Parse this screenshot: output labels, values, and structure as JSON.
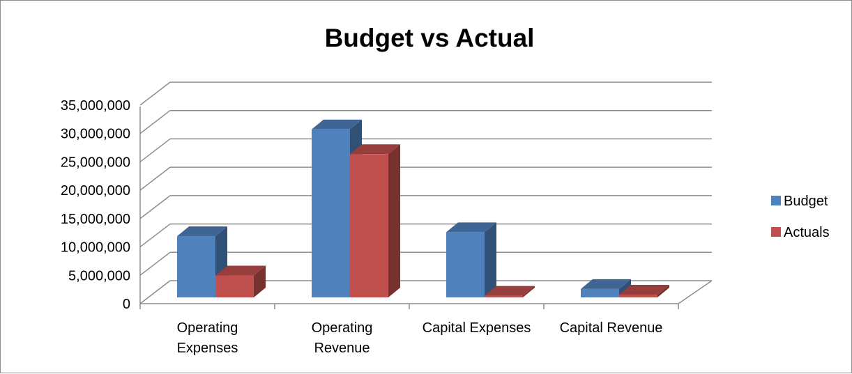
{
  "chart_data": {
    "type": "bar",
    "title": "Budget vs Actual",
    "categories": [
      [
        "Operating",
        "Expenses"
      ],
      [
        "Operating",
        "Revenue"
      ],
      [
        "Capital Expenses"
      ],
      [
        "Capital Revenue"
      ]
    ],
    "series": [
      {
        "name": "Budget",
        "color": "#4F81BD",
        "values": [
          10900000,
          29900000,
          11600000,
          1500000
        ]
      },
      {
        "name": "Actuals",
        "color": "#C0504D",
        "values": [
          3900000,
          25500000,
          300000,
          500000
        ]
      }
    ],
    "yticks": [
      "0",
      "5,000,000",
      "10,000,000",
      "15,000,000",
      "20,000,000",
      "25,000,000",
      "30,000,000",
      "35,000,000"
    ],
    "ylim": [
      0,
      35000000
    ],
    "grid": true,
    "legend_position": "right",
    "style": "3d-clustered-column"
  }
}
